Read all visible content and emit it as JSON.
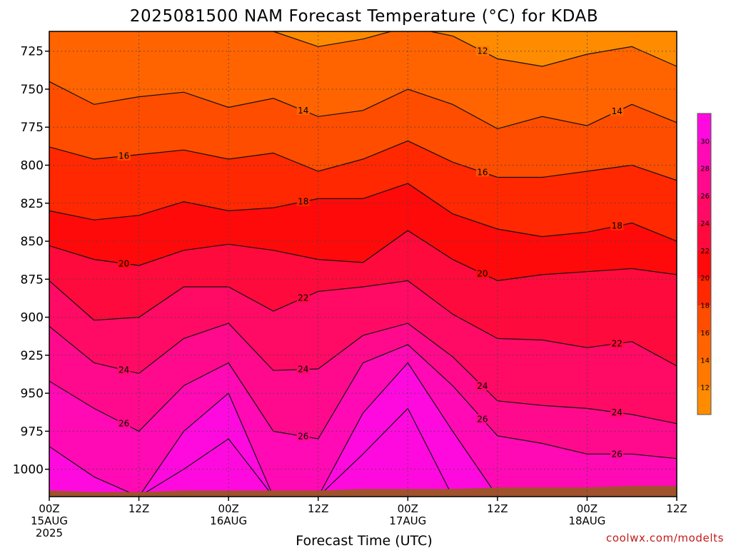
{
  "chart_data": {
    "type": "heatmap",
    "title": "2025081500 NAM Forecast Temperature (°C) for KDAB",
    "xlabel": "Forecast Time (UTC)",
    "ylabel": "",
    "credit": "coolwx.com/modelts",
    "y_scale": "pressure (hPa), decreasing upward",
    "ylim": [
      1018,
      712
    ],
    "y_ticks": [
      {
        "value": 725,
        "label": "725"
      },
      {
        "value": 750,
        "label": "750"
      },
      {
        "value": 775,
        "label": "775"
      },
      {
        "value": 800,
        "label": "800"
      },
      {
        "value": 825,
        "label": "825"
      },
      {
        "value": 850,
        "label": "850"
      },
      {
        "value": 875,
        "label": "875"
      },
      {
        "value": 900,
        "label": "900"
      },
      {
        "value": 925,
        "label": "925"
      },
      {
        "value": 950,
        "label": "950"
      },
      {
        "value": 975,
        "label": "975"
      },
      {
        "value": 1000,
        "label": "1000"
      }
    ],
    "xlim": [
      0,
      84
    ],
    "x_ticks": [
      {
        "hour": 0,
        "lines": [
          "00Z",
          "15AUG",
          "2025"
        ]
      },
      {
        "hour": 12,
        "lines": [
          "12Z"
        ]
      },
      {
        "hour": 24,
        "lines": [
          "00Z",
          "16AUG"
        ]
      },
      {
        "hour": 36,
        "lines": [
          "12Z"
        ]
      },
      {
        "hour": 48,
        "lines": [
          "00Z",
          "17AUG"
        ]
      },
      {
        "hour": 60,
        "lines": [
          "12Z"
        ]
      },
      {
        "hour": 72,
        "lines": [
          "00Z",
          "18AUG"
        ]
      },
      {
        "hour": 84,
        "lines": [
          "12Z"
        ]
      }
    ],
    "grid": true,
    "legend": "colorbar right",
    "colorbar": {
      "levels": [
        10,
        12,
        14,
        16,
        18,
        20,
        22,
        24,
        26,
        28,
        30,
        32
      ],
      "tick_labels": [
        "12",
        "14",
        "16",
        "18",
        "20",
        "22",
        "24",
        "26",
        "28",
        "30"
      ],
      "colors": [
        "#ff8c00",
        "#ff7800",
        "#ff6400",
        "#ff4d00",
        "#ff2800",
        "#ff0a0a",
        "#ff0a3c",
        "#ff0a64",
        "#ff0a8c",
        "#ff0ab4",
        "#ff0ade"
      ]
    },
    "contour_hours": [
      0,
      6,
      12,
      18,
      24,
      30,
      36,
      42,
      48,
      54,
      60,
      66,
      72,
      78,
      84
    ],
    "isotherms": [
      {
        "temp": 12,
        "pressure": [
          709,
          709,
          709,
          709,
          709,
          712,
          722,
          717,
          709,
          715,
          730,
          735,
          727,
          722,
          735
        ],
        "label": "12"
      },
      {
        "temp": 14,
        "pressure": [
          745,
          760,
          755,
          752,
          762,
          756,
          768,
          764,
          750,
          760,
          776,
          768,
          774,
          760,
          772
        ],
        "label": "14"
      },
      {
        "temp": 16,
        "pressure": [
          788,
          796,
          793,
          790,
          796,
          792,
          804,
          796,
          784,
          798,
          808,
          808,
          804,
          800,
          810
        ],
        "label": "16"
      },
      {
        "temp": 18,
        "pressure": [
          830,
          836,
          833,
          824,
          830,
          828,
          822,
          822,
          812,
          832,
          842,
          847,
          844,
          838,
          850
        ],
        "label": "18"
      },
      {
        "temp": 20,
        "pressure": [
          853,
          862,
          866,
          856,
          852,
          856,
          862,
          864,
          843,
          862,
          876,
          872,
          870,
          868,
          872
        ],
        "label": "20"
      },
      {
        "temp": 22,
        "pressure": [
          876,
          902,
          900,
          880,
          880,
          896,
          883,
          880,
          876,
          898,
          914,
          915,
          920,
          916,
          932
        ],
        "label": "22"
      },
      {
        "temp": 24,
        "pressure": [
          906,
          930,
          937,
          914,
          904,
          935,
          934,
          912,
          904,
          926,
          955,
          958,
          960,
          964,
          970
        ],
        "label": "24"
      },
      {
        "temp": 26,
        "pressure": [
          942,
          960,
          975,
          945,
          930,
          975,
          980,
          930,
          918,
          945,
          978,
          983,
          990,
          990,
          993
        ],
        "label": "26"
      },
      {
        "temp": 28,
        "pressure": [
          985,
          1005,
          1018,
          975,
          950,
          1018,
          1018,
          963,
          930,
          975,
          1018,
          1018,
          1018,
          1018,
          1018
        ],
        "label": ""
      },
      {
        "temp": 30,
        "pressure": [
          1018,
          1018,
          1018,
          1000,
          980,
          1018,
          1018,
          990,
          960,
          1018,
          1018,
          1018,
          1018,
          1018,
          1018
        ],
        "label": ""
      }
    ],
    "surface_pressure": [
      1014,
      1015,
      1015,
      1014,
      1014,
      1014,
      1014,
      1013,
      1013,
      1013,
      1012,
      1012,
      1012,
      1011,
      1011
    ]
  }
}
